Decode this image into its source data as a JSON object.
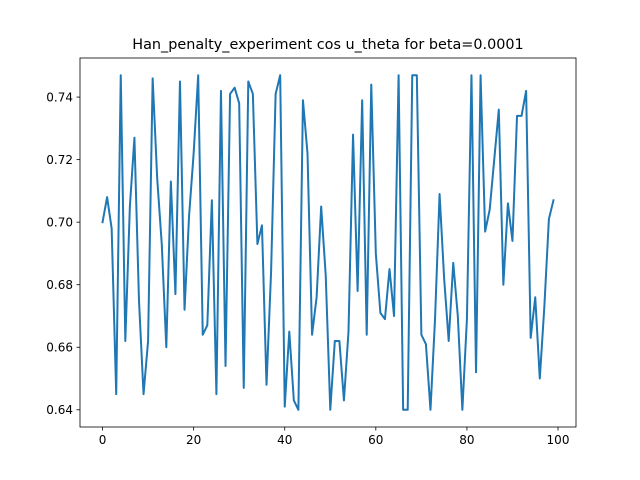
{
  "chart_data": {
    "type": "line",
    "title": "Han_penalty_experiment cos u_theta for beta=0.0001",
    "xlabel": "",
    "ylabel": "",
    "xlim": [
      -4.95,
      103.95
    ],
    "ylim": [
      0.6345,
      0.7525
    ],
    "xticks": [
      0,
      20,
      40,
      60,
      80,
      100
    ],
    "yticks": [
      0.64,
      0.66,
      0.68,
      0.7,
      0.72,
      0.74
    ],
    "ytick_labels": [
      "0.64",
      "0.66",
      "0.68",
      "0.70",
      "0.72",
      "0.74"
    ],
    "grid": false,
    "legend": "none",
    "series": [
      {
        "color": "#1f77b4",
        "x": [
          0,
          1,
          2,
          3,
          4,
          5,
          6,
          7,
          8,
          9,
          10,
          11,
          12,
          13,
          14,
          15,
          16,
          17,
          18,
          19,
          20,
          21,
          22,
          23,
          24,
          25,
          26,
          27,
          28,
          29,
          30,
          31,
          32,
          33,
          34,
          35,
          36,
          37,
          38,
          39,
          40,
          41,
          42,
          43,
          44,
          45,
          46,
          47,
          48,
          49,
          50,
          51,
          52,
          53,
          54,
          55,
          56,
          57,
          58,
          59,
          60,
          61,
          62,
          63,
          64,
          65,
          66,
          67,
          68,
          69,
          70,
          71,
          72,
          73,
          74,
          75,
          76,
          77,
          78,
          79,
          80,
          81,
          82,
          83,
          84,
          85,
          86,
          87,
          88,
          89,
          90,
          91,
          92,
          93,
          94,
          95,
          96,
          97,
          98,
          99
        ],
        "values": [
          0.7,
          0.708,
          0.698,
          0.645,
          0.747,
          0.662,
          0.705,
          0.727,
          0.675,
          0.645,
          0.662,
          0.746,
          0.714,
          0.693,
          0.66,
          0.713,
          0.677,
          0.745,
          0.672,
          0.702,
          0.722,
          0.747,
          0.664,
          0.667,
          0.707,
          0.645,
          0.742,
          0.654,
          0.741,
          0.743,
          0.738,
          0.647,
          0.745,
          0.741,
          0.693,
          0.699,
          0.648,
          0.684,
          0.741,
          0.747,
          0.641,
          0.665,
          0.643,
          0.64,
          0.739,
          0.722,
          0.664,
          0.676,
          0.705,
          0.683,
          0.64,
          0.662,
          0.662,
          0.643,
          0.665,
          0.728,
          0.678,
          0.739,
          0.664,
          0.744,
          0.69,
          0.671,
          0.669,
          0.685,
          0.67,
          0.747,
          0.64,
          0.64,
          0.747,
          0.747,
          0.664,
          0.661,
          0.64,
          0.669,
          0.709,
          0.682,
          0.662,
          0.687,
          0.67,
          0.64,
          0.669,
          0.747,
          0.652,
          0.747,
          0.697,
          0.704,
          0.72,
          0.736,
          0.68,
          0.706,
          0.694,
          0.734,
          0.734,
          0.742,
          0.663,
          0.676,
          0.65,
          0.673,
          0.701,
          0.707
        ]
      }
    ]
  }
}
